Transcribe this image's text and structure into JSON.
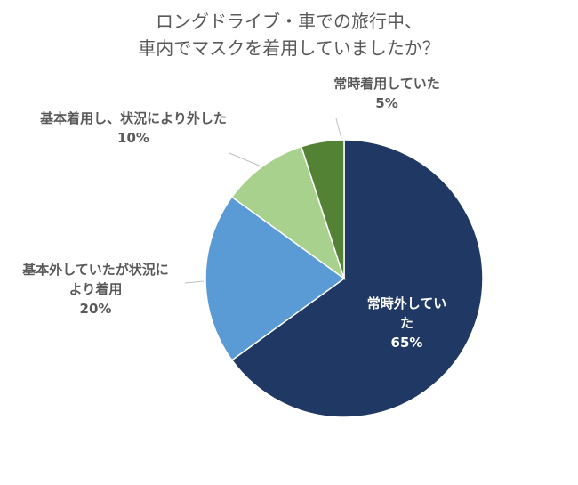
{
  "chart_data": {
    "type": "pie",
    "title": [
      "ロングドライブ・車での旅行中、",
      "車内でマスクを着用していましたか？"
    ],
    "categories": [
      "常時外していた",
      "基本外していたが状況により着用",
      "基本着用し、状況により外した",
      "常時着用していた"
    ],
    "values": [
      65,
      20,
      10,
      5
    ],
    "value_labels": [
      "65%",
      "20%",
      "10%",
      "5%"
    ],
    "colors": [
      "#203864",
      "#5b9bd5",
      "#a9d18e",
      "#548235"
    ]
  }
}
